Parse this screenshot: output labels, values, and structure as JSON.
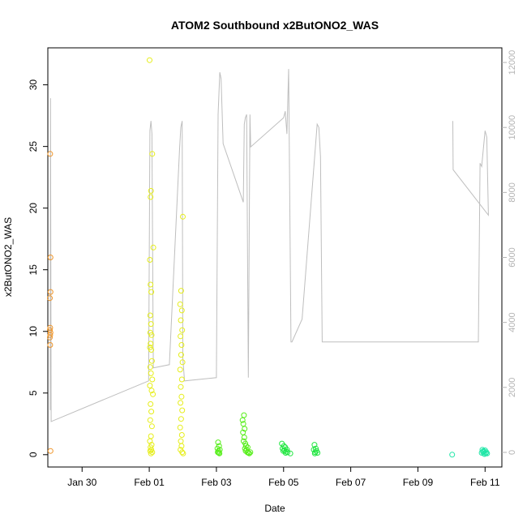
{
  "chart_data": {
    "type": "scatter",
    "title": "ATOM2 Southbound x2ButONO2_WAS",
    "xlabel": "Date",
    "ylabel": "x2ButONO2_WAS",
    "x_ticks": [
      "Jan 30",
      "Feb 01",
      "Feb 03",
      "Feb 05",
      "Feb 07",
      "Feb 09",
      "Feb 11"
    ],
    "x_tick_days": [
      30,
      32,
      34,
      36,
      38,
      40,
      42
    ],
    "xlim": [
      28.98,
      42.5
    ],
    "ylim": [
      -1.0,
      33.0
    ],
    "y_ticks": [
      0,
      5,
      10,
      15,
      20,
      25,
      30
    ],
    "y2lim": [
      -450,
      12450
    ],
    "y2_ticks": [
      0,
      2000,
      4000,
      6000,
      8000,
      10000,
      12000
    ],
    "y2_label": "",
    "grid": false,
    "legend": "none",
    "secondary_line_color": "#bebebe",
    "series": [
      {
        "color": "#f0962a",
        "points": [
          [
            29.05,
            24.4
          ],
          [
            29.06,
            16.0
          ],
          [
            29.06,
            13.2
          ],
          [
            29.04,
            12.7
          ],
          [
            29.05,
            10.3
          ],
          [
            29.04,
            10.1
          ],
          [
            29.06,
            9.9
          ],
          [
            29.05,
            9.7
          ],
          [
            29.04,
            9.5
          ],
          [
            29.05,
            8.9
          ],
          [
            29.06,
            0.3
          ]
        ]
      },
      {
        "color": "#e6ee1a",
        "points": [
          [
            32.01,
            32.0
          ],
          [
            32.09,
            24.4
          ],
          [
            32.05,
            21.4
          ],
          [
            32.04,
            20.9
          ],
          [
            32.12,
            16.8
          ],
          [
            32.02,
            15.8
          ],
          [
            32.04,
            13.8
          ],
          [
            32.06,
            13.2
          ],
          [
            32.03,
            11.3
          ],
          [
            32.05,
            10.6
          ],
          [
            32.03,
            9.9
          ],
          [
            32.07,
            9.7
          ],
          [
            32.04,
            9.0
          ],
          [
            32.02,
            8.7
          ],
          [
            32.06,
            8.5
          ],
          [
            32.08,
            7.6
          ],
          [
            32.03,
            7.1
          ],
          [
            32.05,
            6.6
          ],
          [
            32.09,
            6.1
          ],
          [
            32.02,
            5.6
          ],
          [
            32.07,
            5.2
          ],
          [
            32.11,
            4.9
          ],
          [
            32.04,
            4.1
          ],
          [
            32.06,
            3.5
          ],
          [
            32.03,
            2.8
          ],
          [
            32.08,
            2.3
          ],
          [
            32.05,
            1.5
          ],
          [
            32.02,
            1.1
          ],
          [
            32.07,
            0.8
          ],
          [
            32.04,
            0.6
          ],
          [
            32.06,
            0.4
          ],
          [
            32.03,
            0.3
          ],
          [
            32.09,
            0.2
          ],
          [
            32.05,
            0.1
          ],
          [
            33.0,
            19.3
          ],
          [
            32.95,
            13.3
          ],
          [
            32.92,
            12.2
          ],
          [
            32.97,
            11.7
          ],
          [
            32.94,
            10.9
          ],
          [
            32.98,
            10.1
          ],
          [
            32.93,
            9.6
          ],
          [
            32.96,
            8.9
          ],
          [
            32.95,
            8.1
          ],
          [
            32.99,
            7.5
          ],
          [
            32.92,
            6.9
          ],
          [
            32.97,
            6.1
          ],
          [
            32.94,
            5.5
          ],
          [
            32.96,
            4.7
          ],
          [
            32.93,
            4.2
          ],
          [
            32.98,
            3.6
          ],
          [
            32.95,
            2.9
          ],
          [
            32.92,
            2.2
          ],
          [
            32.97,
            1.6
          ],
          [
            32.94,
            1.1
          ],
          [
            32.96,
            0.7
          ],
          [
            32.93,
            0.4
          ],
          [
            32.98,
            0.2
          ],
          [
            33.01,
            0.1
          ]
        ]
      },
      {
        "color": "#55ee18",
        "points": [
          [
            34.05,
            1.0
          ],
          [
            34.08,
            0.7
          ],
          [
            34.03,
            0.5
          ],
          [
            34.1,
            0.4
          ],
          [
            34.06,
            0.3
          ],
          [
            34.04,
            0.2
          ],
          [
            34.09,
            0.1
          ],
          [
            34.07,
            0.15
          ],
          [
            34.82,
            3.2
          ],
          [
            34.78,
            2.8
          ],
          [
            34.8,
            2.5
          ],
          [
            34.84,
            2.1
          ],
          [
            34.79,
            1.8
          ],
          [
            34.83,
            1.4
          ],
          [
            34.81,
            1.1
          ],
          [
            34.86,
            0.9
          ],
          [
            34.88,
            0.7
          ],
          [
            34.85,
            0.5
          ],
          [
            34.9,
            0.4
          ],
          [
            34.87,
            0.3
          ],
          [
            34.92,
            0.2
          ],
          [
            34.95,
            0.15
          ],
          [
            34.98,
            0.1
          ],
          [
            35.01,
            0.2
          ],
          [
            34.93,
            0.6
          ]
        ]
      },
      {
        "color": "#1fe63f",
        "points": [
          [
            35.95,
            0.9
          ],
          [
            36.01,
            0.7
          ],
          [
            36.05,
            0.6
          ],
          [
            35.97,
            0.5
          ],
          [
            36.1,
            0.4
          ],
          [
            36.03,
            0.35
          ],
          [
            35.99,
            0.3
          ],
          [
            36.08,
            0.25
          ],
          [
            36.12,
            0.2
          ],
          [
            36.06,
            0.15
          ],
          [
            36.2,
            0.1
          ],
          [
            36.92,
            0.8
          ],
          [
            36.96,
            0.5
          ],
          [
            36.9,
            0.4
          ],
          [
            36.98,
            0.3
          ],
          [
            36.94,
            0.2
          ],
          [
            37.01,
            0.15
          ],
          [
            36.93,
            0.1
          ]
        ]
      },
      {
        "color": "#1fe6a7",
        "points": [
          [
            41.02,
            0.0
          ],
          [
            41.92,
            0.4
          ],
          [
            41.95,
            0.3
          ],
          [
            42.0,
            0.35
          ],
          [
            41.97,
            0.25
          ],
          [
            42.04,
            0.2
          ],
          [
            41.9,
            0.15
          ],
          [
            42.06,
            0.1
          ],
          [
            41.98,
            0.05
          ],
          [
            42.02,
            0.1
          ],
          [
            41.94,
            0.2
          ]
        ]
      }
    ],
    "secondary_line": {
      "points": [
        [
          29.05,
          1300
        ],
        [
          29.06,
          10900
        ],
        [
          29.08,
          950
        ],
        [
          31.98,
          2200
        ],
        [
          32.02,
          9900
        ],
        [
          32.05,
          10200
        ],
        [
          32.08,
          9800
        ],
        [
          32.12,
          2600
        ],
        [
          32.6,
          2700
        ],
        [
          32.9,
          9300
        ],
        [
          32.94,
          10000
        ],
        [
          32.98,
          10200
        ],
        [
          33.0,
          2900
        ],
        [
          33.05,
          2200
        ],
        [
          34.0,
          2300
        ],
        [
          34.05,
          10400
        ],
        [
          34.1,
          11700
        ],
        [
          34.14,
          11500
        ],
        [
          34.2,
          9500
        ],
        [
          34.8,
          7700
        ],
        [
          34.83,
          10100
        ],
        [
          34.86,
          10300
        ],
        [
          34.9,
          10400
        ],
        [
          34.95,
          2300
        ],
        [
          35.0,
          10400
        ],
        [
          35.02,
          9400
        ],
        [
          36.0,
          10300
        ],
        [
          36.05,
          10500
        ],
        [
          36.1,
          9800
        ],
        [
          36.15,
          11800
        ],
        [
          36.22,
          3400
        ],
        [
          36.25,
          3400
        ],
        [
          36.55,
          4100
        ],
        [
          37.0,
          10100
        ],
        [
          37.05,
          10000
        ],
        [
          37.1,
          9100
        ],
        [
          37.15,
          3400
        ],
        [
          41.8,
          3400
        ],
        [
          41.85,
          8900
        ],
        [
          41.9,
          8800
        ],
        [
          42.0,
          9900
        ],
        [
          42.05,
          9700
        ],
        [
          42.1,
          7300
        ],
        [
          41.05,
          8700
        ],
        [
          41.04,
          10200
        ]
      ]
    }
  }
}
